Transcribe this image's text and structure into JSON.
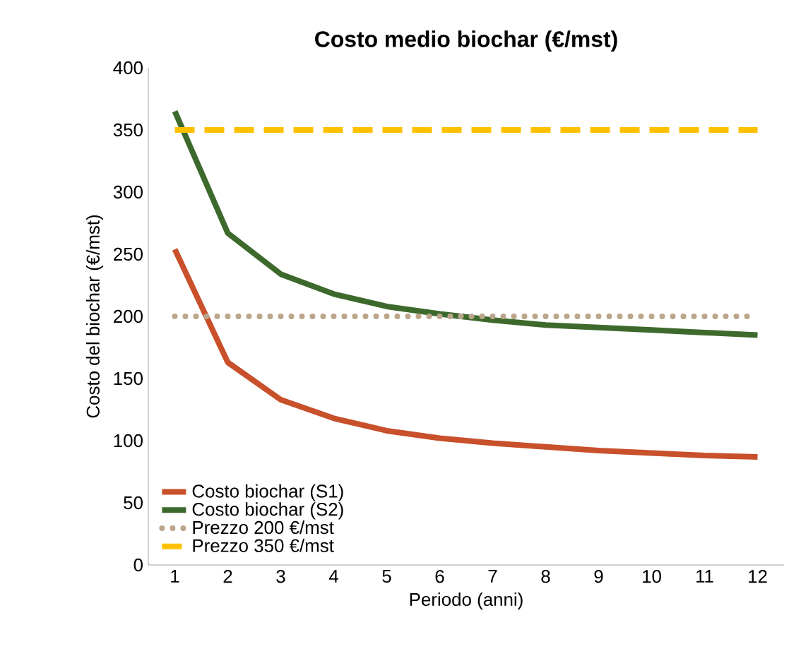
{
  "chart_data": {
    "type": "line",
    "title": "Costo medio biochar (€/mst)",
    "xlabel": "Periodo (anni)",
    "ylabel": "Costo del biochar (€/mst)",
    "categories": [
      "1",
      "2",
      "3",
      "4",
      "5",
      "6",
      "7",
      "8",
      "9",
      "10",
      "11",
      "12"
    ],
    "series": [
      {
        "name": "Costo biochar (S1)",
        "color": "#c8502b",
        "line_style": "solid",
        "values": [
          254,
          163,
          133,
          118,
          108,
          102,
          98,
          95,
          92,
          90,
          88,
          87
        ]
      },
      {
        "name": "Costo biochar (S2)",
        "color": "#3d6a2c",
        "line_style": "solid",
        "values": [
          365,
          267,
          234,
          218,
          208,
          202,
          197,
          193,
          191,
          189,
          187,
          185
        ]
      },
      {
        "name": "Prezzo 200 €/mst",
        "color": "#bba68c",
        "line_style": "dotted",
        "values": [
          200,
          200,
          200,
          200,
          200,
          200,
          200,
          200,
          200,
          200,
          200,
          200
        ]
      },
      {
        "name": "Prezzo 350 €/mst",
        "color": "#ffc000",
        "line_style": "dashed",
        "values": [
          350,
          350,
          350,
          350,
          350,
          350,
          350,
          350,
          350,
          350,
          350,
          350
        ]
      }
    ],
    "ylim": [
      0,
      400
    ],
    "yticks": [
      0,
      50,
      100,
      150,
      200,
      250,
      300,
      350,
      400
    ],
    "legend": "bottom left"
  }
}
